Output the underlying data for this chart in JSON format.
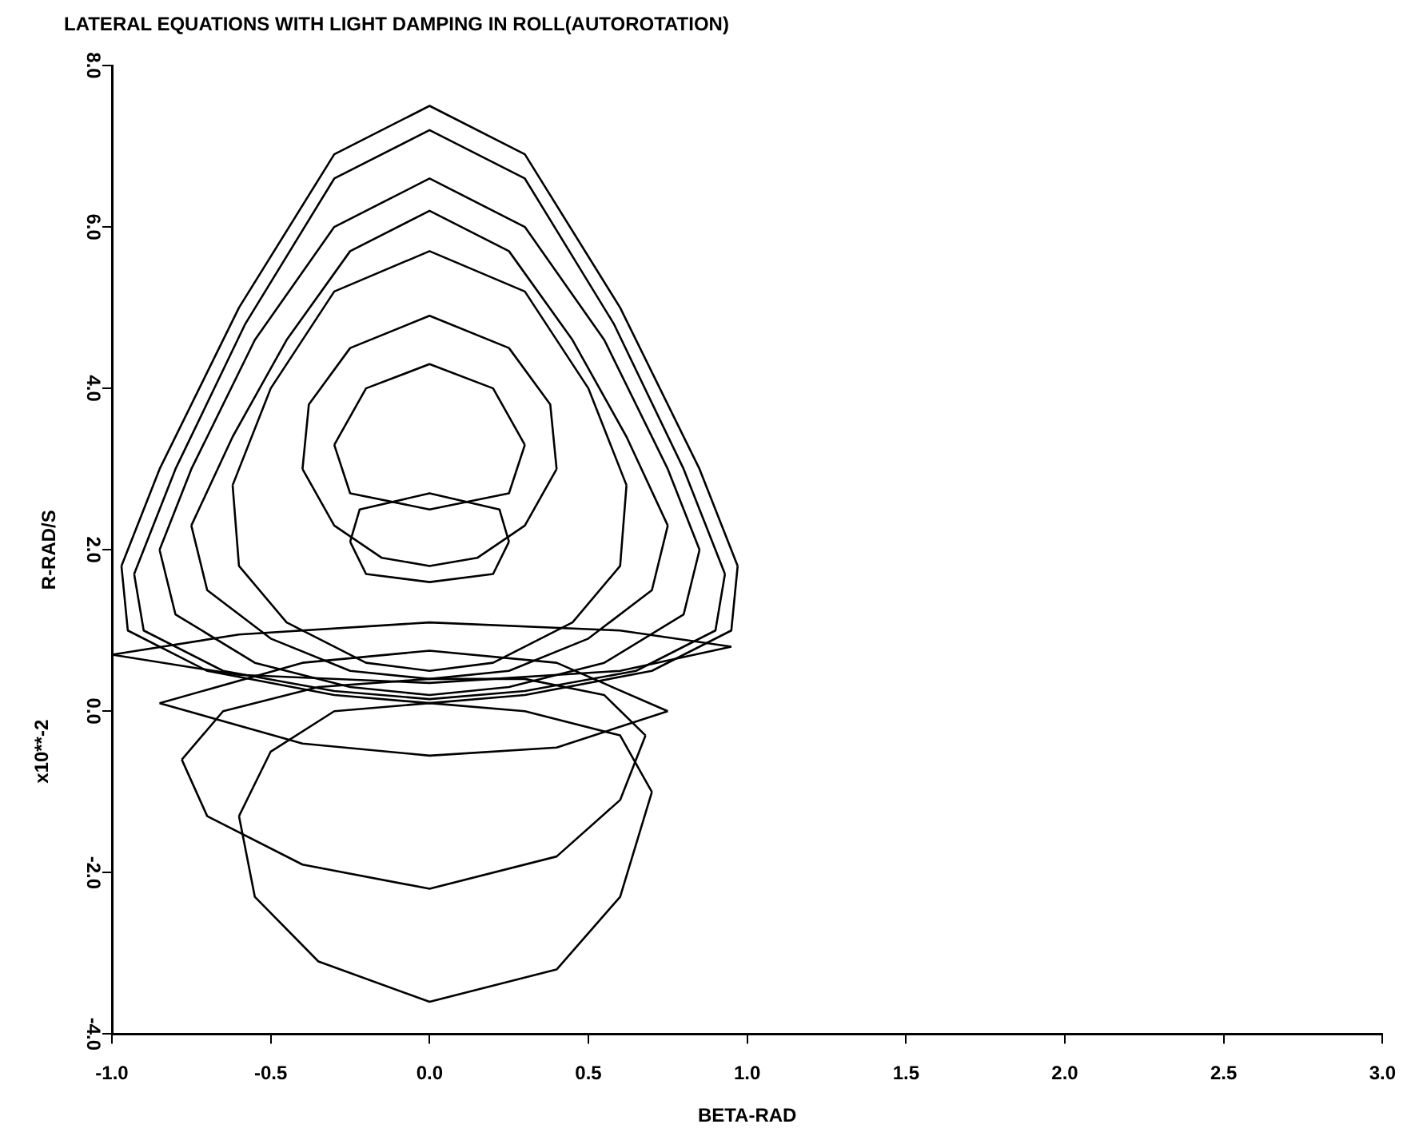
{
  "chart_data": {
    "type": "line",
    "title": "LATERAL EQUATIONS WITH LIGHT DAMPING IN ROLL(AUTOROTATION)",
    "xlabel": "BETA-RAD",
    "ylabel": "R-RAD/S",
    "annotations": [
      "x10**-2"
    ],
    "xlim": [
      -1,
      3
    ],
    "ylim": [
      -4,
      8
    ],
    "xticks": [
      {
        "value": -1,
        "label": "-1.0"
      },
      {
        "value": -0.5,
        "label": "-0.5"
      },
      {
        "value": 0,
        "label": "0.0"
      },
      {
        "value": 0.5,
        "label": "0.5"
      },
      {
        "value": 1,
        "label": "1.0"
      },
      {
        "value": 1.5,
        "label": "1.5"
      },
      {
        "value": 2,
        "label": "2.0"
      },
      {
        "value": 2.5,
        "label": "2.5"
      },
      {
        "value": 3,
        "label": "3.0"
      }
    ],
    "yticks": [
      {
        "value": -4,
        "label": "-4.0"
      },
      {
        "value": -2,
        "label": "-2.0"
      },
      {
        "value": 0,
        "label": "0.0"
      },
      {
        "value": 2,
        "label": "2.0"
      },
      {
        "value": 4,
        "label": "4.0"
      },
      {
        "value": 6,
        "label": "6.0"
      },
      {
        "value": 8,
        "label": "8.0"
      }
    ],
    "grid": false,
    "legend": false,
    "marker": "none",
    "line_style": "solid",
    "series": [
      {
        "color": "#000000",
        "x": [
          -0.97,
          -0.85,
          -0.6,
          -0.3,
          0,
          0.3,
          0.6,
          0.85,
          0.97
        ],
        "values": [
          1.8,
          3.0,
          5.0,
          6.9,
          7.5,
          6.9,
          5.0,
          3.0,
          1.8
        ]
      },
      {
        "color": "#000000",
        "x": [
          -0.97,
          -0.95,
          -0.7,
          -0.3,
          0,
          0.3,
          0.7,
          0.95,
          0.97
        ],
        "values": [
          1.8,
          1.0,
          0.5,
          0.2,
          0.1,
          0.2,
          0.5,
          1.0,
          1.8
        ]
      },
      {
        "color": "#000000",
        "x": [
          -0.93,
          -0.8,
          -0.58,
          -0.3,
          0,
          0.3,
          0.58,
          0.8,
          0.93
        ],
        "values": [
          1.7,
          3.0,
          4.8,
          6.6,
          7.2,
          6.6,
          4.8,
          3.0,
          1.7
        ]
      },
      {
        "color": "#000000",
        "x": [
          -0.93,
          -0.9,
          -0.65,
          -0.3,
          0,
          0.3,
          0.65,
          0.9,
          0.93
        ],
        "values": [
          1.7,
          1.0,
          0.5,
          0.25,
          0.15,
          0.25,
          0.5,
          1.0,
          1.7
        ]
      },
      {
        "color": "#000000",
        "x": [
          -0.85,
          -0.75,
          -0.55,
          -0.3,
          0,
          0.3,
          0.55,
          0.75,
          0.85
        ],
        "values": [
          2.0,
          3.0,
          4.6,
          6.0,
          6.6,
          6.0,
          4.6,
          3.0,
          2.0
        ]
      },
      {
        "color": "#000000",
        "x": [
          -0.85,
          -0.8,
          -0.55,
          -0.25,
          0,
          0.25,
          0.55,
          0.8,
          0.85
        ],
        "values": [
          2.0,
          1.2,
          0.6,
          0.3,
          0.2,
          0.3,
          0.6,
          1.2,
          2.0
        ]
      },
      {
        "color": "#000000",
        "x": [
          -0.75,
          -0.62,
          -0.45,
          -0.25,
          0,
          0.25,
          0.45,
          0.62,
          0.75
        ],
        "values": [
          2.3,
          3.4,
          4.6,
          5.7,
          6.2,
          5.7,
          4.6,
          3.4,
          2.3
        ]
      },
      {
        "color": "#000000",
        "x": [
          -0.75,
          -0.7,
          -0.5,
          -0.25,
          0,
          0.25,
          0.5,
          0.7,
          0.75
        ],
        "values": [
          2.3,
          1.5,
          0.9,
          0.5,
          0.4,
          0.5,
          0.9,
          1.5,
          2.3
        ]
      },
      {
        "color": "#000000",
        "x": [
          -0.62,
          -0.5,
          -0.3,
          0,
          0.3,
          0.5,
          0.62
        ],
        "values": [
          2.8,
          4.0,
          5.2,
          5.7,
          5.2,
          4.0,
          2.8
        ]
      },
      {
        "color": "#000000",
        "x": [
          -0.62,
          -0.6,
          -0.45,
          -0.2,
          0,
          0.2,
          0.45,
          0.6,
          0.62
        ],
        "values": [
          2.8,
          1.8,
          1.1,
          0.6,
          0.5,
          0.6,
          1.1,
          1.8,
          2.8
        ]
      },
      {
        "color": "#000000",
        "x": [
          -0.4,
          -0.38,
          -0.25,
          0,
          0.25,
          0.38,
          0.4
        ],
        "values": [
          3.0,
          3.8,
          4.5,
          4.9,
          4.5,
          3.8,
          3.0
        ]
      },
      {
        "color": "#000000",
        "x": [
          -0.4,
          -0.3,
          -0.15,
          0,
          0.15,
          0.3,
          0.4
        ],
        "values": [
          3.0,
          2.3,
          1.9,
          1.8,
          1.9,
          2.3,
          3.0
        ]
      },
      {
        "color": "#000000",
        "x": [
          -0.3,
          -0.2,
          0,
          0.2,
          0.3
        ],
        "values": [
          3.3,
          4.0,
          4.3,
          4.0,
          3.3
        ]
      },
      {
        "color": "#000000",
        "x": [
          -0.3,
          -0.25,
          0,
          0.25,
          0.3
        ],
        "values": [
          3.3,
          2.7,
          2.5,
          2.7,
          3.3
        ]
      },
      {
        "color": "#000000",
        "x": [
          -0.25,
          -0.22,
          0,
          0.22,
          0.25
        ],
        "values": [
          2.1,
          2.5,
          2.7,
          2.5,
          2.1
        ]
      },
      {
        "color": "#000000",
        "x": [
          -0.25,
          -0.2,
          0,
          0.2,
          0.25
        ],
        "values": [
          2.1,
          1.7,
          1.6,
          1.7,
          2.1
        ]
      },
      {
        "color": "#000000",
        "x": [
          -1,
          -0.6,
          0,
          0.6,
          0.95
        ],
        "values": [
          0.7,
          0.95,
          1.1,
          1.0,
          0.8
        ]
      },
      {
        "color": "#000000",
        "x": [
          -1,
          -0.6,
          0,
          0.6,
          0.95
        ],
        "values": [
          0.7,
          0.45,
          0.35,
          0.5,
          0.8
        ]
      },
      {
        "color": "#000000",
        "x": [
          -0.85,
          -0.4,
          0,
          0.4,
          0.75
        ],
        "values": [
          0.1,
          0.6,
          0.75,
          0.6,
          0.0
        ]
      },
      {
        "color": "#000000",
        "x": [
          -0.85,
          -0.4,
          0,
          0.4,
          0.75
        ],
        "values": [
          0.1,
          -0.4,
          -0.55,
          -0.45,
          0.0
        ]
      },
      {
        "color": "#000000",
        "x": [
          -0.78,
          -0.65,
          -0.35,
          0,
          0.3,
          0.55,
          0.68
        ],
        "values": [
          -0.6,
          0,
          0.3,
          0.4,
          0.4,
          0.2,
          -0.3
        ]
      },
      {
        "color": "#000000",
        "x": [
          -0.78,
          -0.7,
          -0.4,
          0,
          0.4,
          0.6,
          0.68
        ],
        "values": [
          -0.6,
          -1.3,
          -1.9,
          -2.2,
          -1.8,
          -1.1,
          -0.3
        ]
      },
      {
        "color": "#000000",
        "x": [
          -0.6,
          -0.5,
          -0.3,
          0,
          0.3,
          0.6,
          0.7
        ],
        "values": [
          -1.3,
          -0.5,
          0.0,
          0.1,
          0.0,
          -0.3,
          -1.0
        ]
      },
      {
        "color": "#000000",
        "x": [
          -0.6,
          -0.55,
          -0.35,
          0,
          0.4,
          0.6,
          0.7
        ],
        "values": [
          -1.3,
          -2.3,
          -3.1,
          -3.6,
          -3.2,
          -2.3,
          -1.0
        ]
      }
    ]
  }
}
